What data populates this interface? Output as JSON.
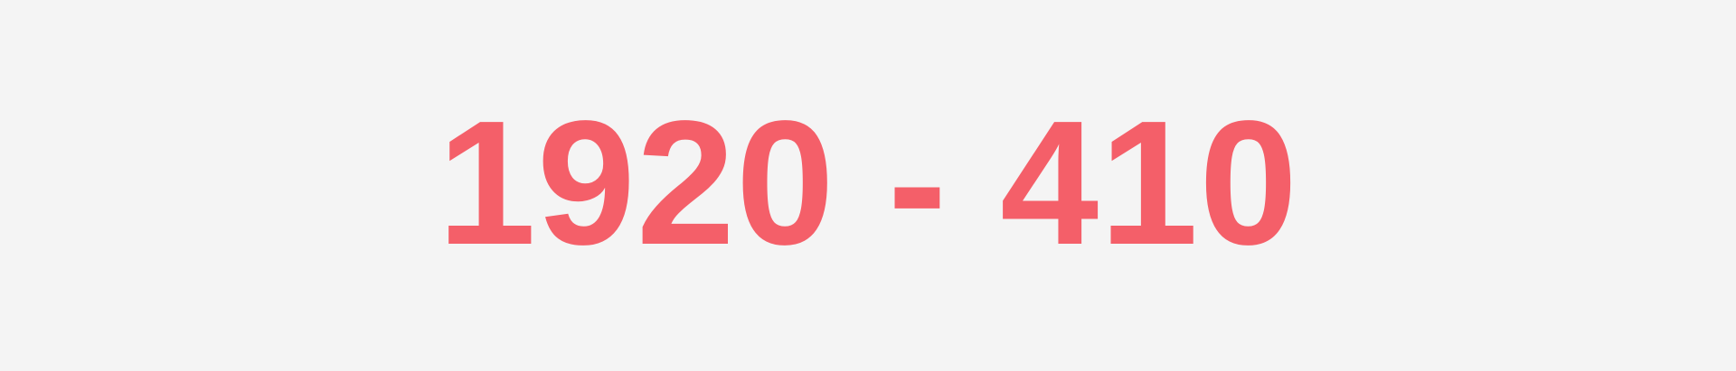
{
  "banner": {
    "width_text": "1920",
    "separator": "-",
    "height_text": "410",
    "color": "#f45f69",
    "background": "#f4f4f4"
  }
}
